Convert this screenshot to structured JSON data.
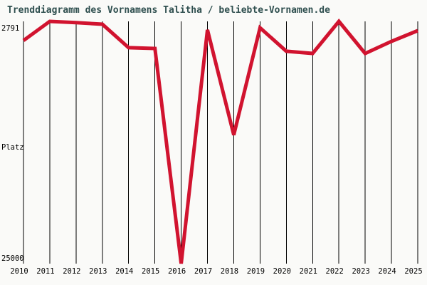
{
  "window": {
    "background_color": "#FAFAF8"
  },
  "header": {
    "title": "Trenddiagramm des Vornamens Talitha / beliebte-Vornamen.de",
    "title_color": "#2F4F4F"
  },
  "y_axis": {
    "top_label": "2791",
    "axis_title": "Platz",
    "bottom_label": "25000"
  },
  "chart_data": {
    "type": "line",
    "title": "Trenddiagramm des Vornamens Talitha / beliebte-Vornamen.de",
    "x": [
      2010,
      2011,
      2012,
      2013,
      2014,
      2015,
      2016,
      2017,
      2018,
      2019,
      2020,
      2021,
      2022,
      2023,
      2024,
      2025
    ],
    "x_tick_labels": [
      "2010",
      "2011",
      "2012",
      "2013",
      "2014",
      "2015",
      "2016",
      "2017",
      "2018",
      "2019",
      "2020",
      "2021",
      "2022",
      "2023",
      "2024",
      "2025"
    ],
    "series": [
      {
        "name": "Talitha",
        "values": [
          4550,
          2791,
          2900,
          3050,
          5200,
          5270,
          25000,
          3570,
          13200,
          3380,
          5530,
          5730,
          2791,
          5730,
          4620,
          3640
        ]
      }
    ],
    "ylabel": "Platz",
    "ylim": [
      2791,
      25000
    ],
    "y_axis_inverted": true,
    "y_tick_labels": [
      "2791",
      "25000"
    ],
    "grid": "vertical-only",
    "legend": "none",
    "line_color": "#D1132F",
    "line_width": 5,
    "grid_color": "#000000",
    "tick_color": "#000000"
  }
}
